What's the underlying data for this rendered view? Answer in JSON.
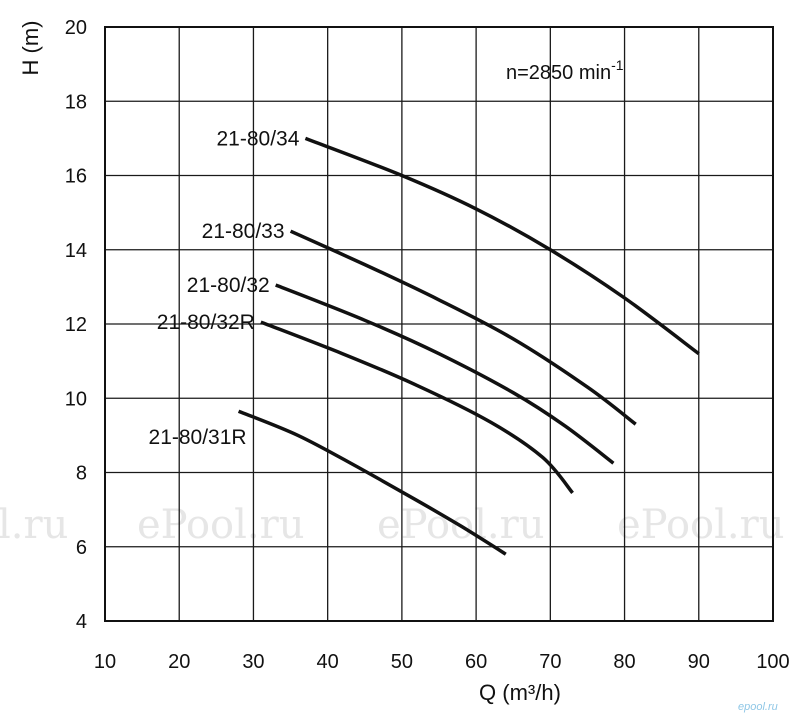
{
  "chart_data": {
    "type": "line",
    "xlabel": "Q (m³/h)",
    "ylabel": "H (m)",
    "xlim": [
      10,
      100
    ],
    "ylim": [
      4,
      20
    ],
    "x_ticks": [
      "10",
      "20",
      "30",
      "40",
      "50",
      "60",
      "70",
      "80",
      "90",
      "100"
    ],
    "y_ticks": [
      "4",
      "6",
      "8",
      "10",
      "12",
      "14",
      "16",
      "18",
      "20"
    ],
    "grid": true,
    "annotation_main": "n=2850 min",
    "annotation_sup": "-1",
    "series": [
      {
        "name": "21-80/34",
        "x": [
          37,
          50,
          60,
          70,
          80,
          90
        ],
        "y": [
          17.0,
          16.0,
          15.1,
          14.0,
          12.7,
          11.2
        ]
      },
      {
        "name": "21-80/33",
        "x": [
          35,
          45,
          55,
          65,
          75,
          81.5
        ],
        "y": [
          14.5,
          13.6,
          12.65,
          11.6,
          10.3,
          9.3
        ]
      },
      {
        "name": "21-80/32",
        "x": [
          33,
          45,
          55,
          65,
          72,
          78.5
        ],
        "y": [
          13.05,
          12.1,
          11.2,
          10.15,
          9.25,
          8.25
        ]
      },
      {
        "name": "21-80/32R",
        "x": [
          31,
          42,
          52,
          62,
          69,
          73
        ],
        "y": [
          12.05,
          11.2,
          10.35,
          9.35,
          8.4,
          7.45
        ]
      },
      {
        "name": "21-80/31R",
        "x": [
          28,
          36,
          44,
          52,
          58,
          64
        ],
        "y": [
          9.65,
          9.0,
          8.15,
          7.25,
          6.55,
          5.8
        ]
      }
    ]
  },
  "watermarks": [
    "l.ru",
    "ePool.ru",
    "ePool.ru",
    "ePool.ru"
  ],
  "logo_text": "epool.ru"
}
